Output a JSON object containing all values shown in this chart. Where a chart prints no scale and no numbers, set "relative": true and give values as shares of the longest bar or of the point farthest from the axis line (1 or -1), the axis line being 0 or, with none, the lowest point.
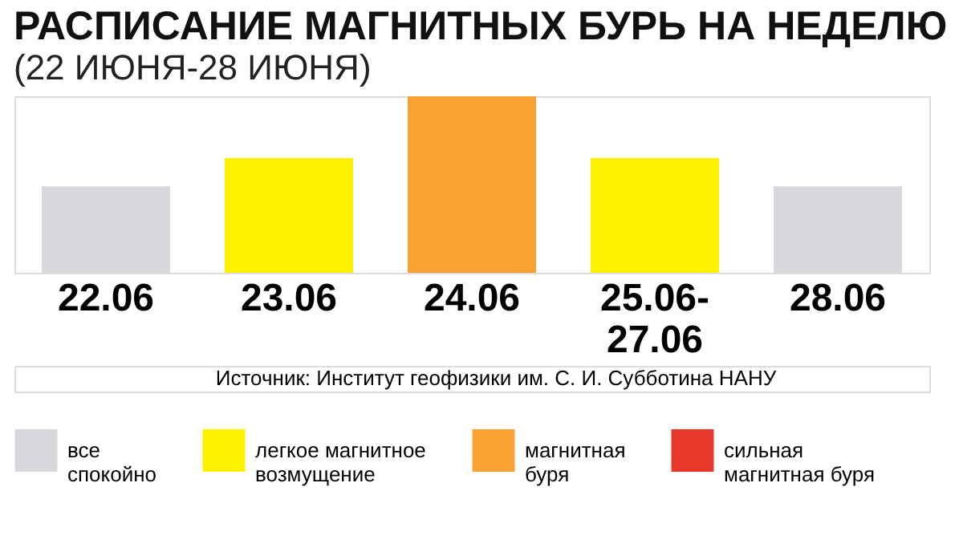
{
  "chart_data": {
    "type": "bar",
    "title": "РАСПИСАНИЕ МАГНИТНЫХ БУРЬ НА НЕДЕЛЮ",
    "subtitle": "(22 ИЮНЯ-28 ИЮНЯ)",
    "categories": [
      "22.06",
      "23.06",
      "24.06",
      "25.06-\n27.06",
      "28.06"
    ],
    "relative": true,
    "series": [
      {
        "name": "все\nспокойно",
        "color": "#d7d8dc",
        "values": [
          0.49,
          null,
          null,
          null,
          0.49
        ]
      },
      {
        "name": "легкое магнитное\nвозмущение",
        "color": "#fff200",
        "values": [
          null,
          0.65,
          null,
          0.65,
          null
        ]
      },
      {
        "name": "магнитная\nбуря",
        "color": "#f9a233",
        "values": [
          null,
          null,
          1,
          null,
          null
        ]
      },
      {
        "name": "сильная\nмагнитная буря",
        "color": "#e8392d",
        "values": [
          null,
          null,
          null,
          null,
          null
        ]
      }
    ],
    "legend": "bottom",
    "grid": false,
    "annotations": [
      "Источник:  Институт геофизики им. С. И. Субботина НАНУ"
    ]
  }
}
